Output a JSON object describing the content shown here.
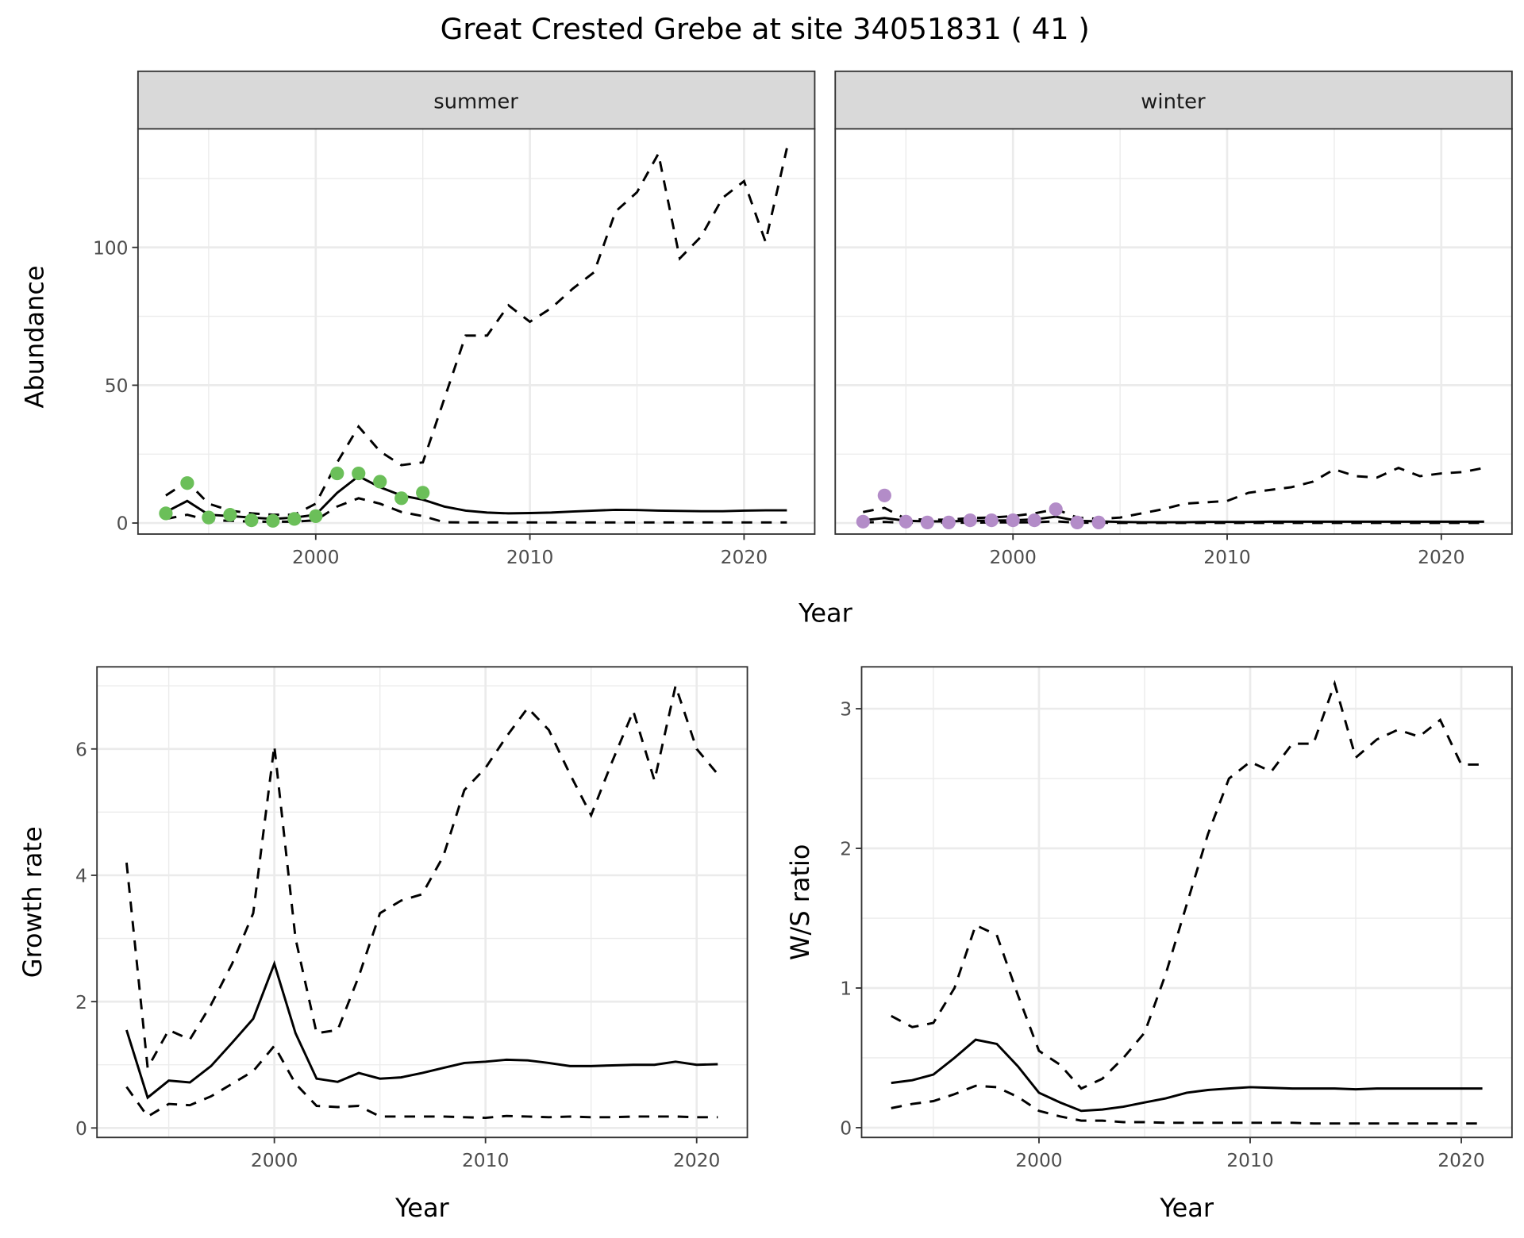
{
  "title": "Great Crested Grebe at site 34051831 ( 41 )",
  "colors": {
    "summer_points": "#6bbf59",
    "winter_points": "#b38cc8",
    "line": "#000000",
    "grid": "#ebebeb",
    "strip": "#d9d9d9"
  },
  "chart_data": [
    {
      "type": "line",
      "facet": "summer",
      "xlabel": "Year",
      "ylabel": "Abundance",
      "xlim": [
        1991.7,
        2023.3
      ],
      "ylim": [
        -4,
        143
      ],
      "xticks": [
        2000,
        2010,
        2020
      ],
      "yticks": [
        0,
        50,
        100
      ],
      "x": [
        1993,
        1994,
        1995,
        1996,
        1997,
        1998,
        1999,
        2000,
        2001,
        2002,
        2003,
        2004,
        2005,
        2006,
        2007,
        2008,
        2009,
        2010,
        2011,
        2012,
        2013,
        2014,
        2015,
        2016,
        2017,
        2018,
        2019,
        2020,
        2021,
        2022
      ],
      "series": [
        {
          "name": "estimate",
          "style": "solid",
          "values": [
            4,
            8,
            3,
            2.5,
            2,
            1.5,
            2,
            3,
            11,
            17,
            13,
            10,
            8.5,
            6,
            4.5,
            3.8,
            3.5,
            3.6,
            3.8,
            4.2,
            4.5,
            4.8,
            4.7,
            4.5,
            4.4,
            4.3,
            4.3,
            4.5,
            4.6,
            4.6
          ]
        },
        {
          "name": "upper",
          "style": "dashed",
          "values": [
            10,
            15,
            7,
            4.5,
            3.5,
            3,
            3,
            7,
            22,
            35,
            26,
            21,
            22,
            45,
            68,
            68,
            79,
            73,
            78,
            85,
            91,
            113,
            120,
            134,
            96,
            104,
            118,
            124,
            102,
            136
          ]
        },
        {
          "name": "lower",
          "style": "dashed",
          "values": [
            1.5,
            3,
            1,
            0.8,
            0.5,
            0.5,
            0.5,
            1,
            6,
            9,
            7,
            4,
            2.5,
            0.3,
            0.2,
            0.2,
            0.2,
            0.2,
            0.2,
            0.2,
            0.2,
            0.2,
            0.2,
            0.2,
            0.2,
            0.2,
            0.2,
            0.2,
            0.2,
            0.2
          ]
        }
      ],
      "points": {
        "x": [
          1993,
          1994,
          1995,
          1996,
          1997,
          1998,
          1999,
          2000,
          2001,
          2002,
          2003,
          2004,
          2005
        ],
        "y": [
          3.5,
          14.5,
          2,
          3,
          1,
          0.8,
          1.5,
          2.5,
          18,
          18,
          15,
          9,
          11
        ]
      }
    },
    {
      "type": "line",
      "facet": "winter",
      "xlabel": "Year",
      "ylabel": "Abundance",
      "xlim": [
        1991.7,
        2023.3
      ],
      "ylim": [
        -4,
        143
      ],
      "xticks": [
        2000,
        2010,
        2020
      ],
      "yticks": [],
      "x": [
        1993,
        1994,
        1995,
        1996,
        1997,
        1998,
        1999,
        2000,
        2001,
        2002,
        2003,
        2004,
        2005,
        2006,
        2007,
        2008,
        2009,
        2010,
        2011,
        2012,
        2013,
        2014,
        2015,
        2016,
        2017,
        2018,
        2019,
        2020,
        2021,
        2022
      ],
      "series": [
        {
          "name": "estimate",
          "style": "solid",
          "values": [
            1,
            1.8,
            0.8,
            0.6,
            0.6,
            0.8,
            0.9,
            1,
            1.3,
            2.3,
            0.8,
            0.6,
            0.4,
            0.3,
            0.3,
            0.3,
            0.4,
            0.4,
            0.4,
            0.5,
            0.5,
            0.5,
            0.5,
            0.5,
            0.5,
            0.5,
            0.5,
            0.5,
            0.5,
            0.5
          ]
        },
        {
          "name": "upper",
          "style": "dashed",
          "values": [
            4,
            5.5,
            1.5,
            1.2,
            1.2,
            1.8,
            2,
            2.5,
            3.5,
            5,
            2,
            1.5,
            2,
            3.5,
            5,
            7,
            7.5,
            8,
            11,
            12,
            13,
            15,
            19.5,
            17,
            16.5,
            20,
            17,
            18,
            18.5,
            20
          ]
        },
        {
          "name": "lower",
          "style": "dashed",
          "values": [
            0.2,
            0.4,
            0.1,
            0.1,
            0.1,
            0.1,
            0.2,
            0.2,
            0.3,
            0.6,
            0.1,
            0.1,
            0.05,
            0.05,
            0.05,
            0.05,
            0.05,
            0.05,
            0.05,
            0.05,
            0.05,
            0.05,
            0.05,
            0.05,
            0.05,
            0.05,
            0.05,
            0.05,
            0.05,
            0.05
          ]
        }
      ],
      "points": {
        "x": [
          1993,
          1994,
          1995,
          1996,
          1997,
          1998,
          1999,
          2000,
          2001,
          2002,
          2003,
          2004
        ],
        "y": [
          0.5,
          10,
          0.5,
          0.2,
          0.2,
          1,
          1,
          1,
          1,
          5,
          0.2,
          0.2
        ]
      }
    },
    {
      "type": "line",
      "xlabel": "Year",
      "ylabel": "Growth rate",
      "xlim": [
        1991.6,
        2022.4
      ],
      "ylim": [
        -0.15,
        7.3
      ],
      "xticks": [
        2000,
        2010,
        2020
      ],
      "yticks": [
        0,
        2,
        4,
        6
      ],
      "x": [
        1993,
        1994,
        1995,
        1996,
        1997,
        1998,
        1999,
        2000,
        2001,
        2002,
        2003,
        2004,
        2005,
        2006,
        2007,
        2008,
        2009,
        2010,
        2011,
        2012,
        2013,
        2014,
        2015,
        2016,
        2017,
        2018,
        2019,
        2020,
        2021
      ],
      "series": [
        {
          "name": "estimate",
          "style": "solid",
          "values": [
            1.55,
            0.48,
            0.75,
            0.72,
            0.98,
            1.35,
            1.73,
            2.6,
            1.5,
            0.78,
            0.73,
            0.87,
            0.78,
            0.8,
            0.87,
            0.95,
            1.03,
            1.05,
            1.08,
            1.07,
            1.03,
            0.98,
            0.98,
            0.99,
            1.0,
            1.0,
            1.05,
            1.0,
            1.01
          ]
        },
        {
          "name": "upper",
          "style": "dashed",
          "values": [
            4.2,
            0.95,
            1.55,
            1.4,
            1.95,
            2.6,
            3.4,
            6.05,
            3.0,
            1.5,
            1.55,
            2.4,
            3.4,
            3.6,
            3.7,
            4.3,
            5.35,
            5.7,
            6.2,
            6.65,
            6.3,
            5.6,
            4.95,
            5.8,
            6.6,
            5.5,
            7.0,
            6.0,
            5.6
          ]
        },
        {
          "name": "lower",
          "style": "dashed",
          "values": [
            0.65,
            0.18,
            0.38,
            0.36,
            0.5,
            0.7,
            0.9,
            1.3,
            0.7,
            0.35,
            0.33,
            0.35,
            0.18,
            0.18,
            0.18,
            0.18,
            0.17,
            0.16,
            0.19,
            0.18,
            0.17,
            0.18,
            0.17,
            0.17,
            0.18,
            0.18,
            0.18,
            0.17,
            0.17
          ]
        }
      ]
    },
    {
      "type": "line",
      "xlabel": "Year",
      "ylabel": "W/S ratio",
      "xlim": [
        1991.6,
        2022.4
      ],
      "ylim": [
        -0.07,
        3.3
      ],
      "xticks": [
        2000,
        2010,
        2020
      ],
      "yticks": [
        0,
        1,
        2,
        3
      ],
      "x": [
        1993,
        1994,
        1995,
        1996,
        1997,
        1998,
        1999,
        2000,
        2001,
        2002,
        2003,
        2004,
        2005,
        2006,
        2007,
        2008,
        2009,
        2010,
        2011,
        2012,
        2013,
        2014,
        2015,
        2016,
        2017,
        2018,
        2019,
        2020,
        2021
      ],
      "series": [
        {
          "name": "estimate",
          "style": "solid",
          "values": [
            0.32,
            0.34,
            0.38,
            0.5,
            0.63,
            0.6,
            0.44,
            0.25,
            0.18,
            0.12,
            0.13,
            0.15,
            0.18,
            0.21,
            0.25,
            0.27,
            0.28,
            0.29,
            0.285,
            0.28,
            0.28,
            0.28,
            0.275,
            0.28,
            0.28,
            0.28,
            0.28,
            0.28,
            0.28
          ]
        },
        {
          "name": "upper",
          "style": "dashed",
          "values": [
            0.8,
            0.72,
            0.75,
            1.0,
            1.45,
            1.38,
            0.95,
            0.55,
            0.45,
            0.28,
            0.35,
            0.5,
            0.68,
            1.1,
            1.6,
            2.1,
            2.5,
            2.62,
            2.55,
            2.75,
            2.75,
            3.18,
            2.65,
            2.78,
            2.85,
            2.8,
            2.92,
            2.6,
            2.6
          ]
        },
        {
          "name": "lower",
          "style": "dashed",
          "values": [
            0.14,
            0.17,
            0.19,
            0.24,
            0.3,
            0.29,
            0.22,
            0.12,
            0.08,
            0.05,
            0.05,
            0.04,
            0.04,
            0.035,
            0.035,
            0.035,
            0.035,
            0.035,
            0.035,
            0.035,
            0.03,
            0.03,
            0.03,
            0.03,
            0.03,
            0.03,
            0.03,
            0.03,
            0.03
          ]
        }
      ]
    }
  ]
}
